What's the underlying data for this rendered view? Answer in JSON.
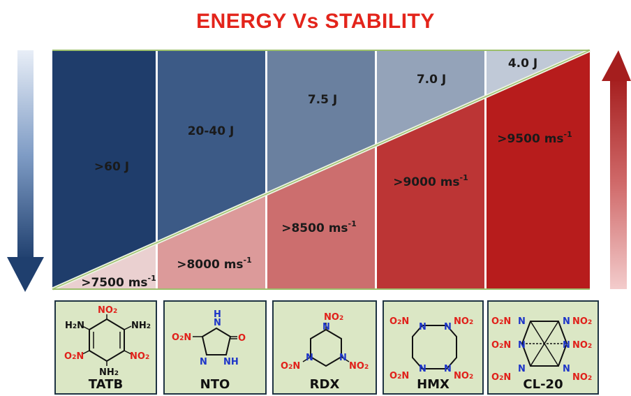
{
  "title": "ENERGY Vs STABILITY",
  "colors": {
    "title": "#e3241b",
    "blue_dark": "#1f3d6b",
    "red_dark": "#b71c1c",
    "card_bg": "#dbe7c5",
    "divider": "#9cbf6b"
  },
  "columns": [
    {
      "impact": ">60 J",
      "velocity_base": ">7500 ms",
      "velocity_exp": "-1",
      "molecule": "TATB"
    },
    {
      "impact": "20-40 J",
      "velocity_base": ">8000 ms",
      "velocity_exp": "-1",
      "molecule": "NTO"
    },
    {
      "impact": "7.5 J",
      "velocity_base": ">8500 ms",
      "velocity_exp": "-1",
      "molecule": "RDX"
    },
    {
      "impact": "7.0 J",
      "velocity_base": ">9000 ms",
      "velocity_exp": "-1",
      "molecule": "HMX"
    },
    {
      "impact": "4.0 J",
      "velocity_base": ">9500 ms",
      "velocity_exp": "-1",
      "molecule": "CL-20"
    }
  ],
  "labels": {
    "no2": "NO",
    "sub2": "2",
    "nh2": "NH",
    "h2n": "H",
    "n": "N",
    "o": "O",
    "h": "H",
    "nh": "NH"
  }
}
